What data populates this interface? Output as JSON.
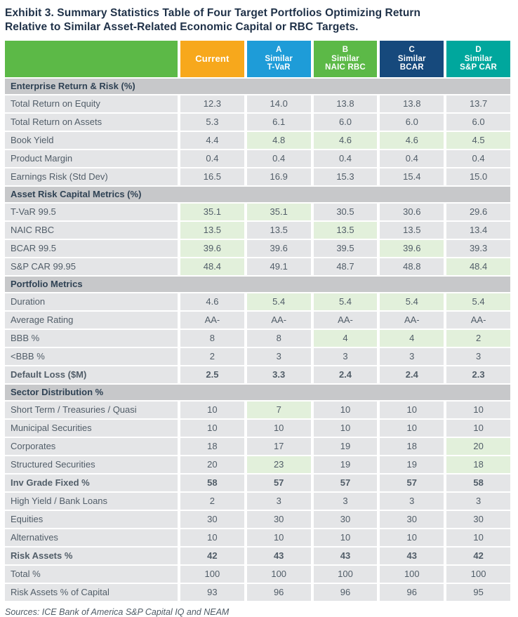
{
  "title": {
    "line1": "Exhibit 3. Summary Statistics Table of Four Target Portfolios Optimizing Return",
    "line2": "Relative to Similar Asset-Related Economic Capital or RBC Targets."
  },
  "source": "Sources: ICE Bank of America S&P Capital IQ and NEAM",
  "colors": {
    "title_text": "#1f3148",
    "section_header_bg": "#c7c8ca",
    "row_bg": "#e4e5e7",
    "highlight_bg": "#e2f0db",
    "cell_text": "#515d68",
    "header_text": "#ffffff"
  },
  "chart_data": {
    "type": "table",
    "title": "Exhibit 3. Summary Statistics Table of Four Target Portfolios Optimizing Return Relative to Similar Asset-Related Economic Capital or RBC Targets.",
    "corner_color": "#5cb947",
    "columns": [
      {
        "id": "current",
        "lines": [
          "Current"
        ],
        "color": "#f7a81c"
      },
      {
        "id": "a-similar-t-var",
        "lines": [
          "A",
          "Similar",
          "T-VaR"
        ],
        "color": "#1e9cd8"
      },
      {
        "id": "b-similar-naic-rbc",
        "lines": [
          "B",
          "Similar",
          "NAIC RBC"
        ],
        "color": "#5cb947"
      },
      {
        "id": "c-similar-bcar",
        "lines": [
          "C",
          "Similar",
          "BCAR"
        ],
        "color": "#16497c"
      },
      {
        "id": "d-similar-sp-car",
        "lines": [
          "D",
          "Similar",
          "S&P CAR"
        ],
        "color": "#00a79d"
      }
    ],
    "sections": [
      {
        "header": "Enterprise Return & Risk (%)",
        "rows": [
          {
            "label": "Total Return on Equity",
            "values": [
              "12.3",
              "14.0",
              "13.8",
              "13.8",
              "13.7"
            ],
            "highlight": []
          },
          {
            "label": "Total Return on Assets",
            "values": [
              "5.3",
              "6.1",
              "6.0",
              "6.0",
              "6.0"
            ],
            "highlight": []
          },
          {
            "label": "Book Yield",
            "values": [
              "4.4",
              "4.8",
              "4.6",
              "4.6",
              "4.5"
            ],
            "highlight": [
              1,
              2,
              3,
              4
            ]
          },
          {
            "label": "Product Margin",
            "values": [
              "0.4",
              "0.4",
              "0.4",
              "0.4",
              "0.4"
            ],
            "highlight": []
          },
          {
            "label": "Earnings Risk (Std Dev)",
            "values": [
              "16.5",
              "16.9",
              "15.3",
              "15.4",
              "15.0"
            ],
            "highlight": []
          }
        ]
      },
      {
        "header": "Asset Risk Capital Metrics (%)",
        "rows": [
          {
            "label": "T-VaR 99.5",
            "values": [
              "35.1",
              "35.1",
              "30.5",
              "30.6",
              "29.6"
            ],
            "highlight": [
              0,
              1
            ]
          },
          {
            "label": "NAIC RBC",
            "values": [
              "13.5",
              "13.5",
              "13.5",
              "13.5",
              "13.4"
            ],
            "highlight": [
              0,
              2
            ]
          },
          {
            "label": "BCAR 99.5",
            "values": [
              "39.6",
              "39.6",
              "39.5",
              "39.6",
              "39.3"
            ],
            "highlight": [
              0,
              3
            ]
          },
          {
            "label": "S&P CAR 99.95",
            "values": [
              "48.4",
              "49.1",
              "48.7",
              "48.8",
              "48.4"
            ],
            "highlight": [
              0,
              4
            ]
          }
        ]
      },
      {
        "header": "Portfolio Metrics",
        "rows": [
          {
            "label": "Duration",
            "values": [
              "4.6",
              "5.4",
              "5.4",
              "5.4",
              "5.4"
            ],
            "highlight": [
              1,
              2,
              3,
              4
            ]
          },
          {
            "label": "Average Rating",
            "values": [
              "AA-",
              "AA-",
              "AA-",
              "AA-",
              "AA-"
            ],
            "highlight": []
          },
          {
            "label": "BBB %",
            "values": [
              "8",
              "8",
              "4",
              "4",
              "2"
            ],
            "highlight": [
              2,
              3,
              4
            ]
          },
          {
            "label": "<BBB %",
            "values": [
              "2",
              "3",
              "3",
              "3",
              "3"
            ],
            "highlight": []
          },
          {
            "label": "Default Loss ($M)",
            "values": [
              "2.5",
              "3.3",
              "2.4",
              "2.4",
              "2.3"
            ],
            "highlight": [],
            "bold": true
          }
        ]
      },
      {
        "header": "Sector Distribution %",
        "rows": [
          {
            "label": "Short Term / Treasuries / Quasi",
            "values": [
              "10",
              "7",
              "10",
              "10",
              "10"
            ],
            "highlight": [
              1
            ]
          },
          {
            "label": "Municipal Securities",
            "values": [
              "10",
              "10",
              "10",
              "10",
              "10"
            ],
            "highlight": []
          },
          {
            "label": "Corporates",
            "values": [
              "18",
              "17",
              "19",
              "18",
              "20"
            ],
            "highlight": [
              4
            ]
          },
          {
            "label": "Structured Securities",
            "values": [
              "20",
              "23",
              "19",
              "19",
              "18"
            ],
            "highlight": [
              1,
              4
            ]
          },
          {
            "label": "Inv Grade Fixed %",
            "values": [
              "58",
              "57",
              "57",
              "57",
              "58"
            ],
            "highlight": [],
            "bold": true
          },
          {
            "label": "High Yield / Bank Loans",
            "values": [
              "2",
              "3",
              "3",
              "3",
              "3"
            ],
            "highlight": []
          },
          {
            "label": "Equities",
            "values": [
              "30",
              "30",
              "30",
              "30",
              "30"
            ],
            "highlight": []
          },
          {
            "label": "Alternatives",
            "values": [
              "10",
              "10",
              "10",
              "10",
              "10"
            ],
            "highlight": []
          },
          {
            "label": "Risk Assets %",
            "values": [
              "42",
              "43",
              "43",
              "43",
              "42"
            ],
            "highlight": [],
            "bold": true
          },
          {
            "label": "Total %",
            "values": [
              "100",
              "100",
              "100",
              "100",
              "100"
            ],
            "highlight": []
          },
          {
            "label": "Risk Assets % of Capital",
            "values": [
              "93",
              "96",
              "96",
              "96",
              "95"
            ],
            "highlight": []
          }
        ]
      }
    ]
  }
}
